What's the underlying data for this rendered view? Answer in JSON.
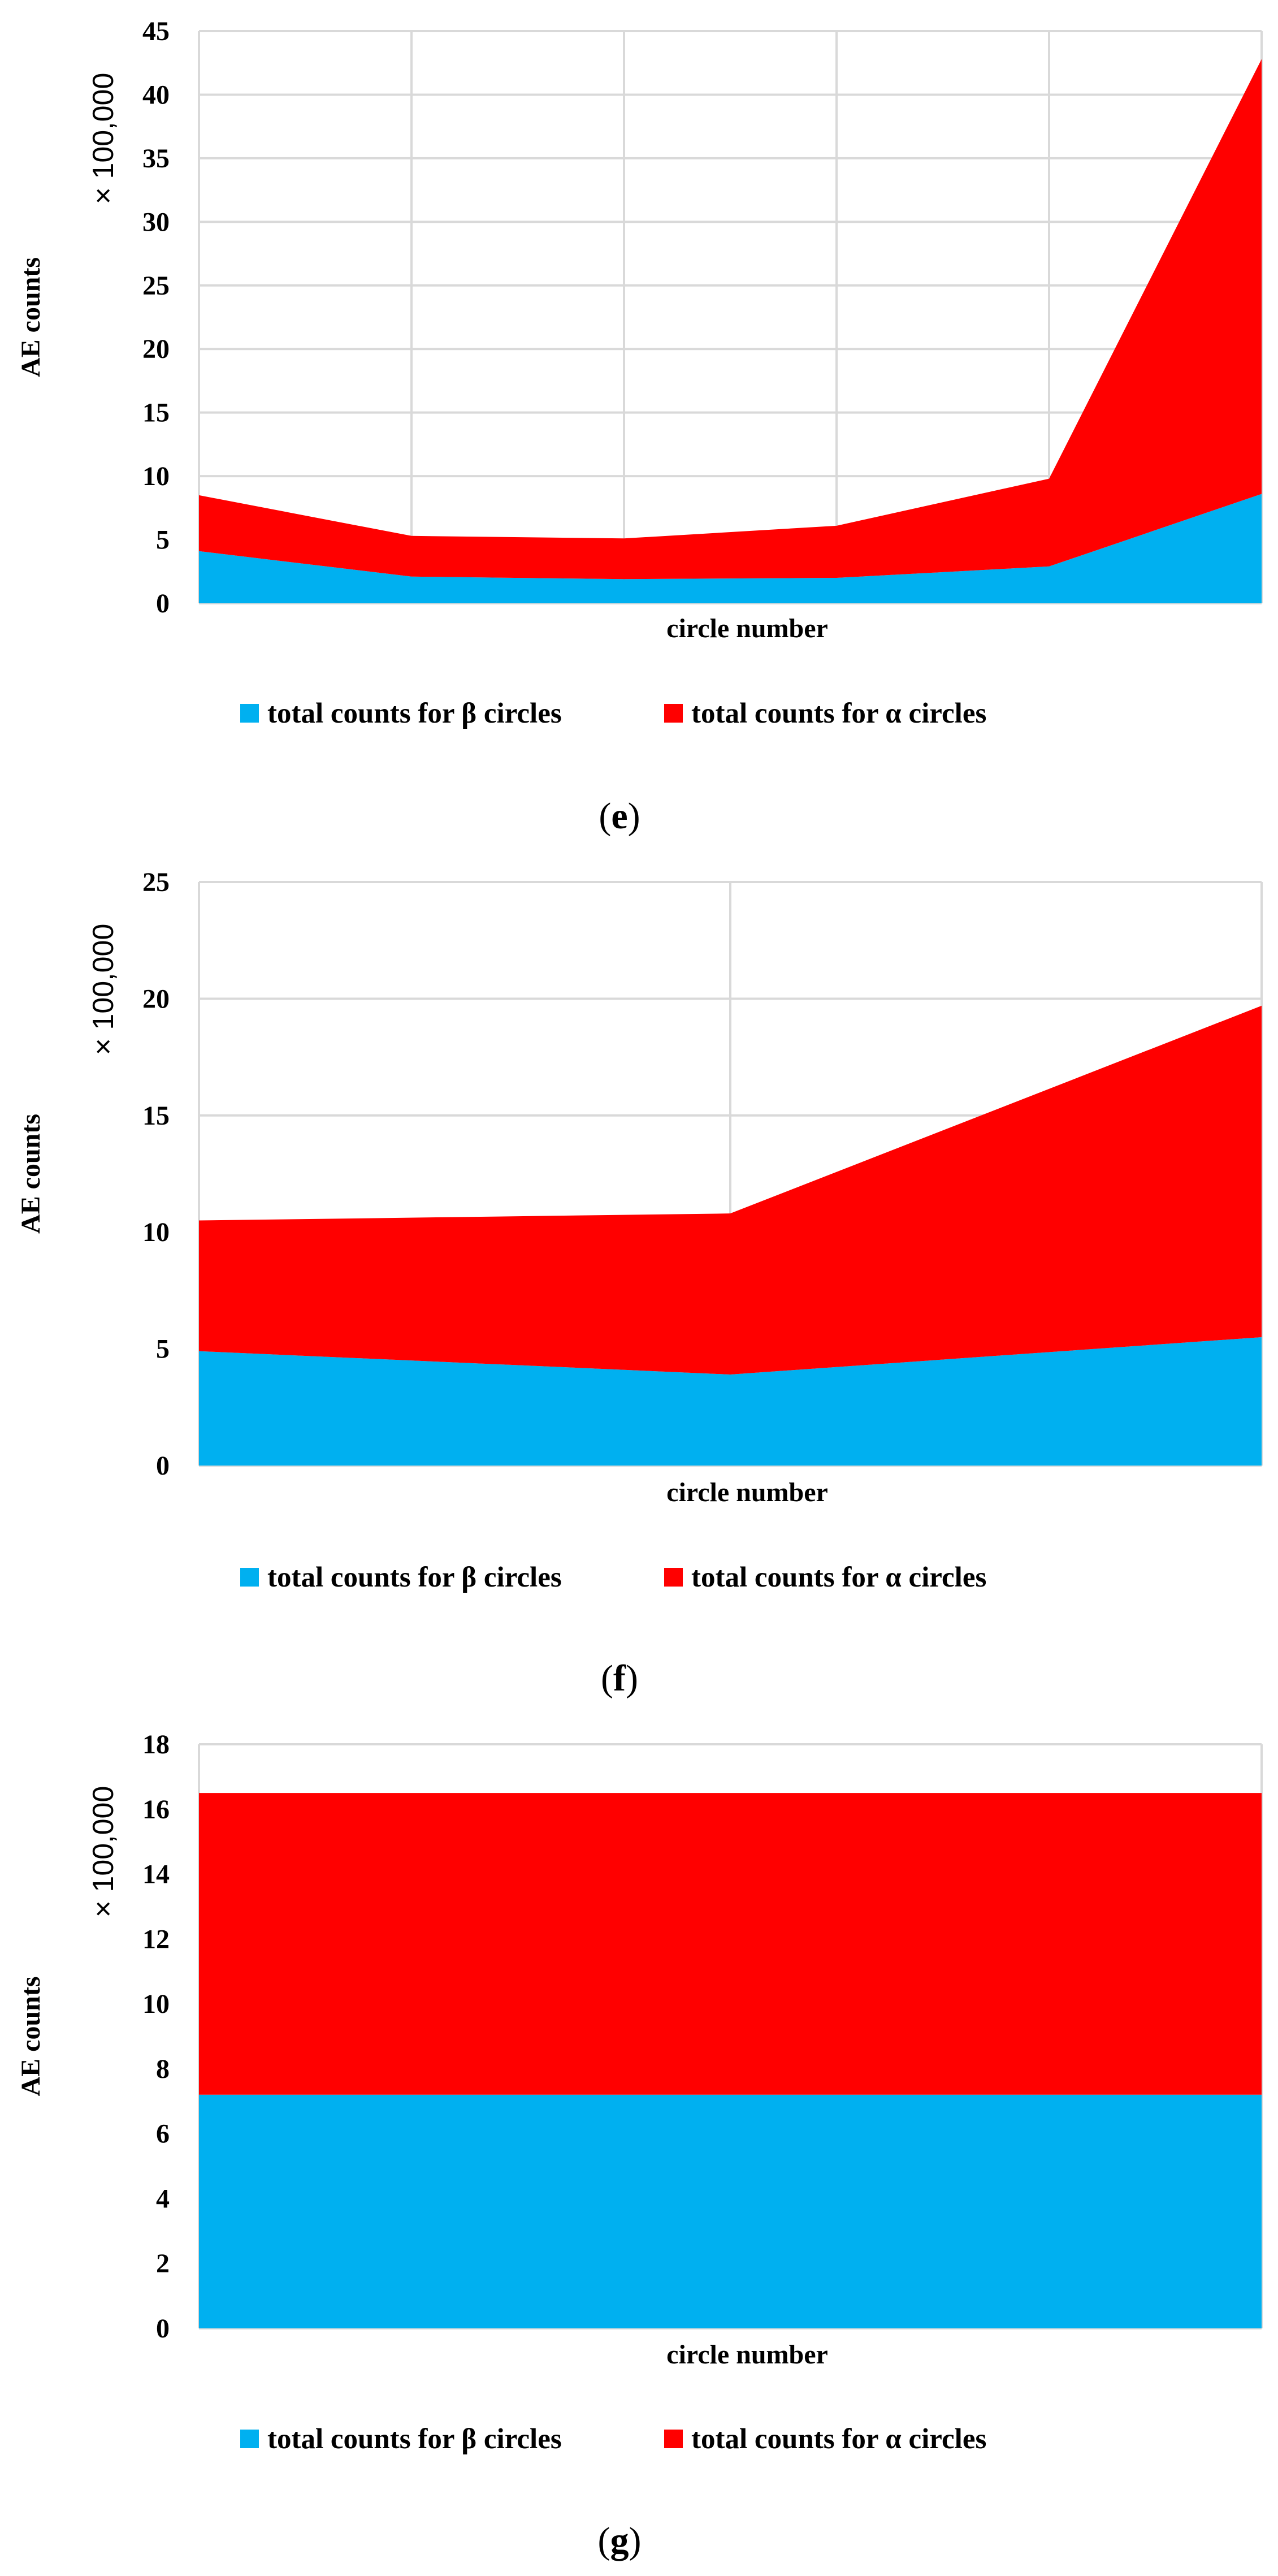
{
  "colors": {
    "beta": "#00B0F0",
    "alpha": "#FF0000",
    "grid": "#D9D9D9"
  },
  "chart_data": [
    {
      "type": "area",
      "stacked": true,
      "panel_label": "e",
      "xlabel": "circle number",
      "ylabel": "AE counts",
      "multiplier": "× 100,000",
      "ylim": [
        0,
        45
      ],
      "yticks": [
        "0",
        "5",
        "10",
        "15",
        "20",
        "25",
        "30",
        "35",
        "40",
        "45"
      ],
      "x": [
        1,
        2,
        3,
        4,
        5,
        6
      ],
      "grid": true,
      "series": [
        {
          "name": "total counts for β circles",
          "color_key": "beta",
          "values": [
            4.1,
            2.1,
            1.9,
            2.0,
            2.9,
            8.6
          ]
        },
        {
          "name": "total counts for α circles",
          "color_key": "alpha",
          "values": [
            4.4,
            3.2,
            3.2,
            4.1,
            6.9,
            34.2
          ]
        }
      ],
      "legend_position": "bottom"
    },
    {
      "type": "area",
      "stacked": true,
      "panel_label": "f",
      "xlabel": "circle number",
      "ylabel": "AE counts",
      "multiplier": "× 100,000",
      "ylim": [
        0,
        25
      ],
      "yticks": [
        "0",
        "5",
        "10",
        "15",
        "20",
        "25"
      ],
      "x": [
        1,
        2,
        3
      ],
      "grid": true,
      "series": [
        {
          "name": "total counts for β circles",
          "color_key": "beta",
          "values": [
            4.9,
            3.9,
            5.5
          ]
        },
        {
          "name": "total counts for α circles",
          "color_key": "alpha",
          "values": [
            5.6,
            6.9,
            14.2
          ]
        }
      ],
      "legend_position": "bottom"
    },
    {
      "type": "area",
      "stacked": true,
      "panel_label": "g",
      "xlabel": "circle number",
      "ylabel": "AE counts",
      "multiplier": "× 100,000",
      "ylim": [
        0,
        18
      ],
      "yticks": [
        "0",
        "2",
        "4",
        "6",
        "8",
        "10",
        "12",
        "14",
        "16",
        "18"
      ],
      "x": [
        1,
        2
      ],
      "grid": true,
      "series": [
        {
          "name": "total counts for β circles",
          "color_key": "beta",
          "values": [
            7.2,
            7.2
          ]
        },
        {
          "name": "total counts for α circles",
          "color_key": "alpha",
          "values": [
            9.3,
            9.3
          ]
        }
      ],
      "legend_position": "bottom"
    }
  ]
}
